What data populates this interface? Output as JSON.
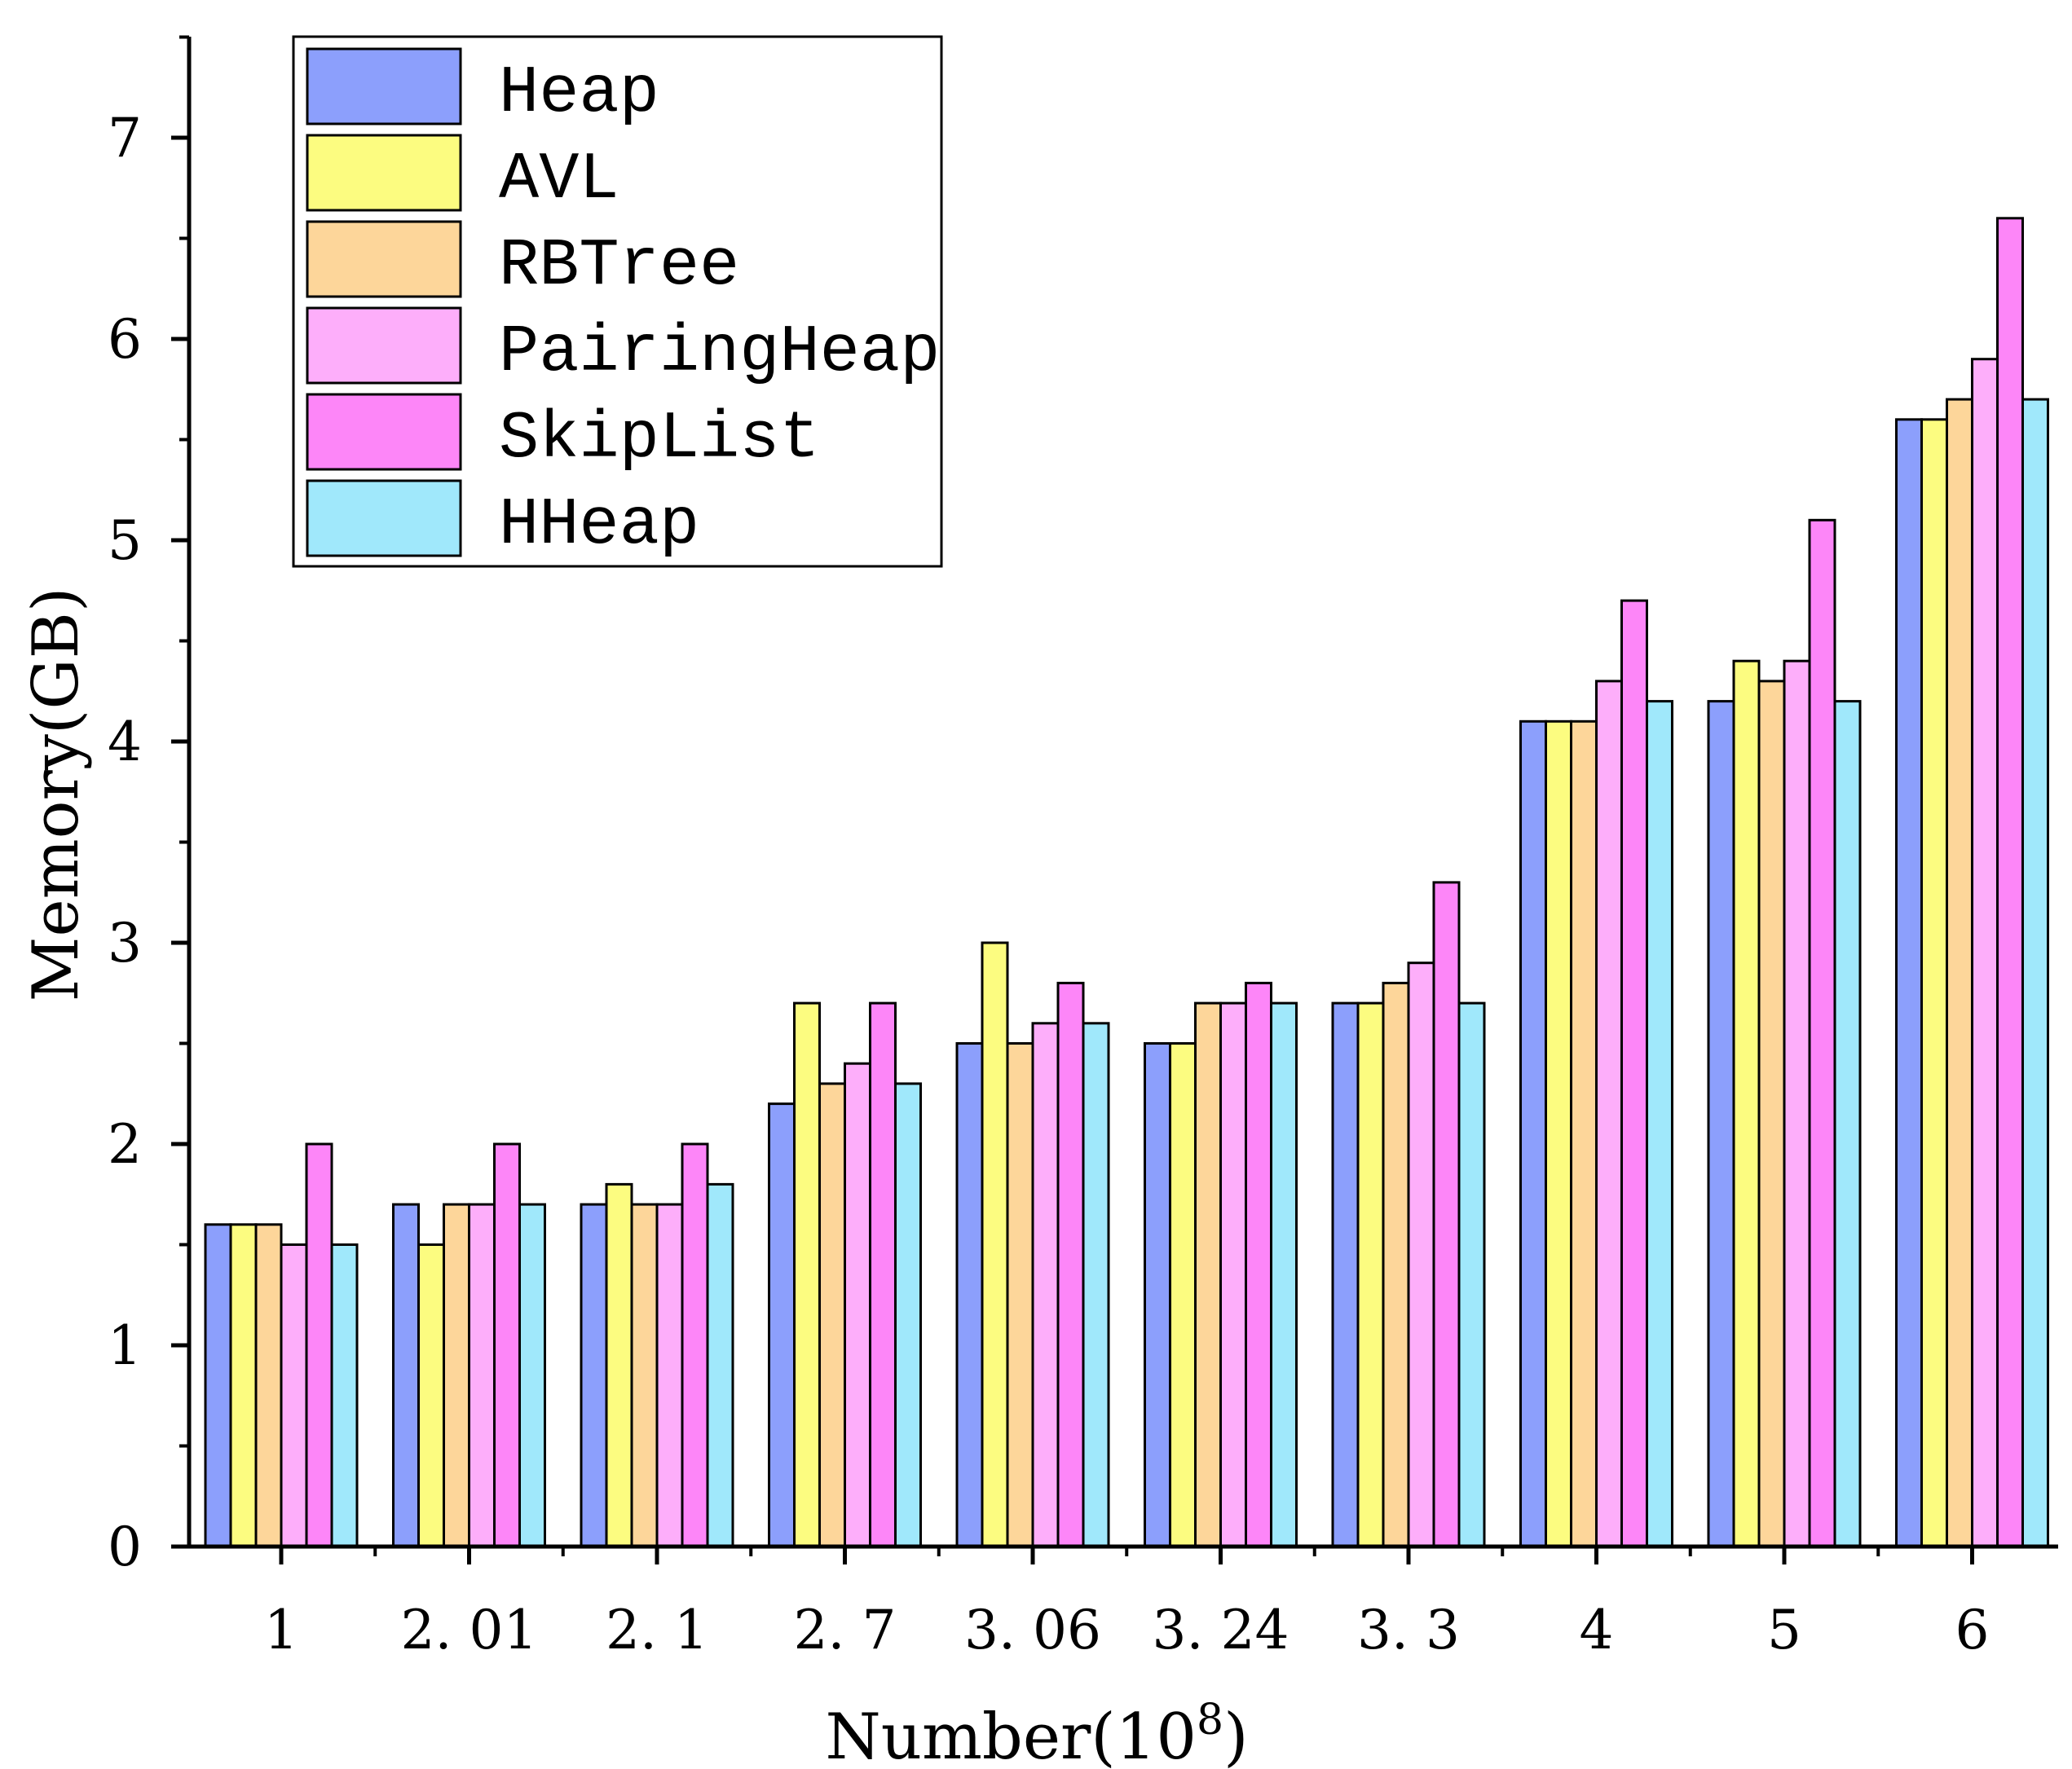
{
  "chart_data": {
    "type": "bar",
    "categories": [
      "1",
      "2.01",
      "2.1",
      "2.7",
      "3.06",
      "3.24",
      "3.3",
      "4",
      "5",
      "6"
    ],
    "series": [
      {
        "name": "Heap",
        "color": "#8c9ffc",
        "values": [
          1.6,
          1.7,
          1.7,
          2.2,
          2.5,
          2.5,
          2.7,
          4.1,
          4.2,
          5.6
        ]
      },
      {
        "name": "AVL",
        "color": "#fcfc80",
        "values": [
          1.6,
          1.5,
          1.8,
          2.7,
          3.0,
          2.5,
          2.7,
          4.1,
          4.4,
          5.6
        ]
      },
      {
        "name": "RBTree",
        "color": "#fdd69a",
        "values": [
          1.6,
          1.7,
          1.7,
          2.3,
          2.5,
          2.7,
          2.8,
          4.1,
          4.3,
          5.7
        ]
      },
      {
        "name": "PairingHeap",
        "color": "#fdaefa",
        "values": [
          1.5,
          1.7,
          1.7,
          2.4,
          2.6,
          2.7,
          2.9,
          4.3,
          4.4,
          5.9
        ]
      },
      {
        "name": "SkipList",
        "color": "#fd86f8",
        "values": [
          2.0,
          2.0,
          2.0,
          2.7,
          2.8,
          2.8,
          3.3,
          4.7,
          5.1,
          6.6
        ]
      },
      {
        "name": "HHeap",
        "color": "#a0e8fb",
        "values": [
          1.5,
          1.7,
          1.8,
          2.3,
          2.6,
          2.7,
          2.7,
          4.2,
          4.2,
          5.7
        ]
      }
    ],
    "title": "",
    "xlabel": "Number(10",
    "xlabel_superscript": "8",
    "xlabel_close": ")",
    "ylabel": "Memory(GB)",
    "ylim": [
      0,
      7.5
    ],
    "yticks": [
      "0",
      "1",
      "2",
      "3",
      "4",
      "5",
      "6",
      "7"
    ],
    "x_tick_labels": [
      "1",
      "2. 01",
      "2. 1",
      "2. 7",
      "3. 06",
      "3. 24",
      "3. 3",
      "4",
      "5",
      "6"
    ],
    "grid": false,
    "legend_position": "top-left"
  }
}
